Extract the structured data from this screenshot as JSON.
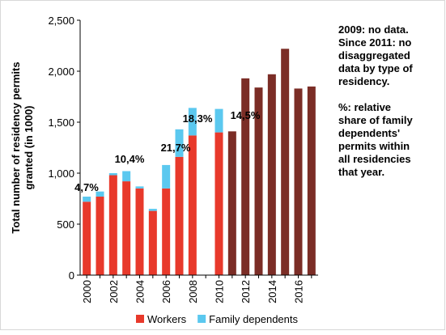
{
  "chart_data": {
    "type": "bar",
    "ylabel": [
      "Total number of residency permits",
      "granted (in 1000)"
    ],
    "categories": [
      "2000",
      null,
      "2002",
      null,
      "2004",
      null,
      "2006",
      null,
      "2008",
      null,
      "2010",
      null,
      "2012",
      null,
      "2014",
      null,
      "2016",
      null
    ],
    "series": [
      {
        "name": "Workers",
        "color": "#e8392b",
        "values": [
          720,
          770,
          980,
          920,
          850,
          630,
          850,
          1160,
          1370,
          null,
          1400,
          null,
          null,
          null,
          null,
          null,
          null,
          null
        ]
      },
      {
        "name": "Family dependents",
        "color": "#5bc8ef",
        "values": [
          50,
          50,
          20,
          100,
          20,
          20,
          230,
          270,
          270,
          null,
          230,
          null,
          null,
          null,
          null,
          null,
          null,
          null
        ]
      },
      {
        "color": "#7b2d26",
        "values": [
          null,
          null,
          null,
          null,
          null,
          null,
          null,
          null,
          null,
          null,
          null,
          1410,
          1930,
          1840,
          1970,
          2220,
          1830,
          1850
        ]
      }
    ],
    "stacked": true,
    "ylim": [
      0,
      2500
    ],
    "yticks": [
      0,
      500,
      {
        "value": 1000,
        "label": "1,000"
      },
      {
        "value": 1500,
        "label": "1,500"
      },
      {
        "value": 2000,
        "label": "2,000"
      },
      {
        "value": 2500,
        "label": "2,500"
      }
    ],
    "annotations": [
      "4,7%",
      "10,4%",
      "21,7%",
      "18,3%",
      "14,5%"
    ],
    "notes": [
      [
        "2009: no data.",
        "Since 2011: no",
        "disaggregated",
        "data by type of",
        "residency."
      ],
      [
        "%: relative",
        "share of family",
        "dependents'",
        "permits within",
        "all residencies",
        "that year."
      ]
    ],
    "legend": "bottom"
  }
}
